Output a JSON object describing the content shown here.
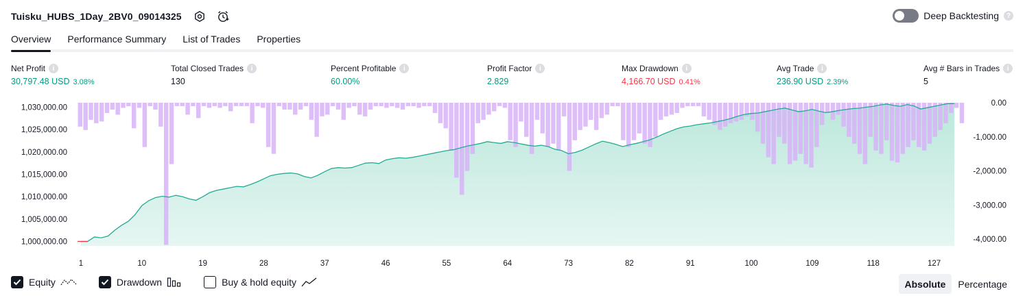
{
  "header": {
    "title": "Tuisku_HUBS_1Day_2BV0_09014325",
    "deep_backtesting_label": "Deep Backtesting",
    "help_glyph": "?"
  },
  "tabs": [
    {
      "label": "Overview",
      "active": true
    },
    {
      "label": "Performance Summary",
      "active": false
    },
    {
      "label": "List of Trades",
      "active": false
    },
    {
      "label": "Properties",
      "active": false
    }
  ],
  "metrics": {
    "net_profit": {
      "label": "Net Profit",
      "value": "30,797.48 USD",
      "pct": "3.08%"
    },
    "total_closed_trades": {
      "label": "Total Closed Trades",
      "value": "130"
    },
    "percent_profitable": {
      "label": "Percent Profitable",
      "value": "60.00%"
    },
    "profit_factor": {
      "label": "Profit Factor",
      "value": "2.829"
    },
    "max_drawdown": {
      "label": "Max Drawdown",
      "value": "4,166.70 USD",
      "pct": "0.41%"
    },
    "avg_trade": {
      "label": "Avg Trade",
      "value": "236.90 USD",
      "pct": "2.39%"
    },
    "avg_bars": {
      "label": "Avg # Bars in Trades",
      "value": "5"
    }
  },
  "legend": {
    "equity": {
      "label": "Equity",
      "checked": true
    },
    "drawdown": {
      "label": "Drawdown",
      "checked": true
    },
    "buy_hold": {
      "label": "Buy & hold equity",
      "checked": false
    }
  },
  "view_mode": {
    "absolute": "Absolute",
    "percentage": "Percentage",
    "selected": "absolute"
  },
  "colors": {
    "equity_line": "#22ab94",
    "equity_fill_top": "#b8e6da",
    "drawdown_bar": "#d7b3f7",
    "negative": "#f23645",
    "positive": "#089981"
  },
  "chart_data": {
    "type": "area",
    "x_ticks": [
      1,
      10,
      19,
      28,
      37,
      46,
      55,
      64,
      73,
      82,
      91,
      100,
      109,
      118,
      127
    ],
    "x_range": [
      0.5,
      131.5
    ],
    "equity": {
      "axis": "left",
      "ylim": [
        999000,
        1031000
      ],
      "y_ticks": [
        1000000,
        1005000,
        1010000,
        1015000,
        1020000,
        1025000,
        1030000
      ],
      "y_tick_labels": [
        "1,000,000.00",
        "1,005,000.00",
        "1,010,000.00",
        "1,015,000.00",
        "1,020,000.00",
        "1,025,000.00",
        "1,030,000.00"
      ],
      "values": [
        1000000,
        1000000,
        1001000,
        1000800,
        1001200,
        1002500,
        1003600,
        1004500,
        1006000,
        1008000,
        1009100,
        1009800,
        1010100,
        1009900,
        1010300,
        1010000,
        1009500,
        1009200,
        1010000,
        1010900,
        1011400,
        1011700,
        1012000,
        1012300,
        1012200,
        1012700,
        1013300,
        1014000,
        1014700,
        1015000,
        1015200,
        1015300,
        1015100,
        1014500,
        1014200,
        1014800,
        1015600,
        1016300,
        1016500,
        1016400,
        1016500,
        1017000,
        1017500,
        1017600,
        1017400,
        1018200,
        1018500,
        1018700,
        1018600,
        1018800,
        1019100,
        1019400,
        1019700,
        1020000,
        1020300,
        1020500,
        1020900,
        1021300,
        1021600,
        1021900,
        1022300,
        1022100,
        1021900,
        1022300,
        1022100,
        1021800,
        1021500,
        1021300,
        1021500,
        1021200,
        1020600,
        1020300,
        1019600,
        1019900,
        1020400,
        1021100,
        1021800,
        1022400,
        1022100,
        1021700,
        1021200,
        1021600,
        1021900,
        1022300,
        1022700,
        1023300,
        1024000,
        1024600,
        1025200,
        1025600,
        1025800,
        1026100,
        1026300,
        1026500,
        1026800,
        1027100,
        1027500,
        1028000,
        1028400,
        1028600,
        1028700,
        1029000,
        1029300,
        1029600,
        1029800,
        1029400,
        1029000,
        1029200,
        1029500,
        1029100,
        1028800,
        1029000,
        1029300,
        1029500,
        1029700,
        1029800,
        1030000,
        1030200,
        1030500,
        1030700,
        1030400,
        1030200,
        1030600,
        1030300,
        1029600,
        1029900,
        1030200,
        1030500,
        1030800,
        1030797
      ],
      "initial_segment": {
        "from": 0,
        "to": 2,
        "value": 1000000
      }
    },
    "drawdown": {
      "axis": "right",
      "ylim": [
        -4200,
        0
      ],
      "y_ticks": [
        0,
        -1000,
        -2000,
        -3000,
        -4000
      ],
      "y_tick_labels": [
        "0.00",
        "-1,000.00",
        "-2,000.00",
        "-3,000.00",
        "-4,000.00"
      ],
      "values": [
        -700,
        -800,
        -500,
        -600,
        -550,
        -300,
        -200,
        -350,
        -150,
        -100,
        -750,
        -150,
        -1300,
        -100,
        -200,
        -700,
        -4170,
        -1800,
        -100,
        -100,
        -350,
        -100,
        -450,
        -100,
        -150,
        -100,
        -150,
        -100,
        -250,
        -100,
        -100,
        -100,
        -600,
        -100,
        -150,
        -1300,
        -1500,
        -100,
        -200,
        -200,
        -350,
        -200,
        -100,
        -500,
        -1000,
        -400,
        -350,
        -100,
        -200,
        -500,
        -150,
        -100,
        -350,
        -400,
        -200,
        -100,
        -100,
        -150,
        -100,
        -150,
        -200,
        -100,
        -100,
        -150,
        -100,
        -100,
        -300,
        -600,
        -750,
        -1400,
        -2200,
        -2700,
        -2000,
        -1500,
        -600,
        -500,
        -350,
        -250,
        -100,
        -150,
        -1100,
        -1300,
        -550,
        -1000,
        -1500,
        -500,
        -900,
        -1300,
        -1200,
        -1400,
        -400,
        -2000,
        -1100,
        -800,
        -700,
        -500,
        -800,
        -450,
        -350,
        -100,
        -100,
        -1100,
        -1300,
        -1100,
        -900,
        -1200,
        -1300,
        -1000,
        -500,
        -400,
        -350,
        -300,
        -150,
        -100,
        -100,
        -100,
        -400,
        -500,
        -650,
        -800,
        -700,
        -600,
        -550,
        -500,
        -400,
        -500,
        -850,
        -1200,
        -1600,
        -1800,
        -1000,
        -1200,
        -1800,
        -1700,
        -1500,
        -1800,
        -1900,
        -1300,
        -650,
        -300,
        -500,
        -350,
        -700,
        -1000,
        -1200,
        -1500,
        -1800,
        -1000,
        -1400,
        -1500,
        -1100,
        -1700,
        -1750,
        -1500,
        -1300,
        -1100,
        -1300,
        -1400,
        -1200,
        -1000,
        -800,
        -600,
        -300,
        -150,
        -600
      ]
    }
  }
}
